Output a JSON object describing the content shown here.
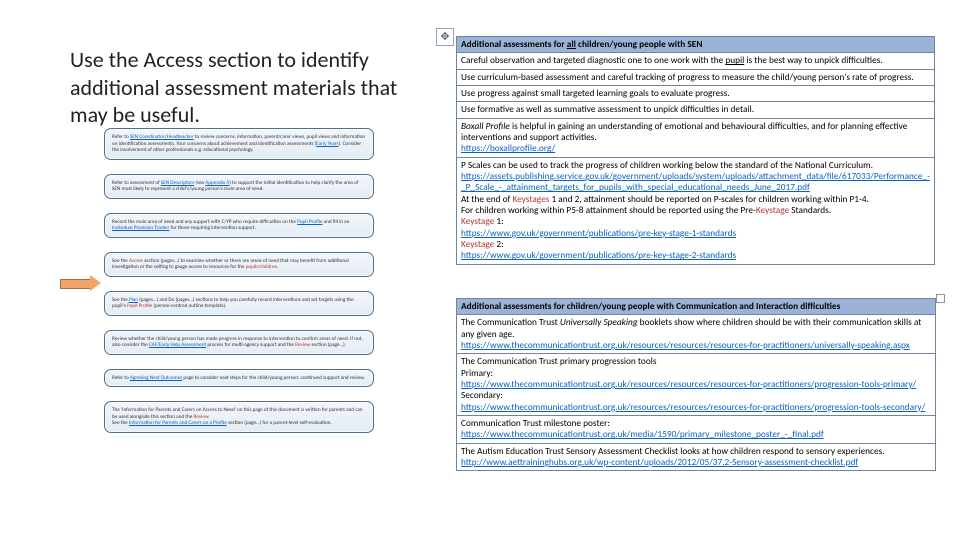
{
  "headline": "Use the Access section to identify additional assessment materials that may be useful.",
  "flow_steps": [
    {
      "text": "Refer to <span class='link'>SEN Coordinator/Headteacher</span> to review concerns, information, parent/carer views, pupil views and information on identification assessments. Your concerns about achievement and identification assessments (<span class='link'>Early Years</span>). Consider the involvement of other professionals e.g. educational psychology."
    },
    {
      "text": "Refer to assessment of <span class='link'>SEN Descriptors</span> (see <span class='link'>Appendix A</span>) to support the initial identification to help clarify the area of SEN most likely to represent a child's/young person's main area of need."
    },
    {
      "text": "Record the main area of need and any support with C/YP who require difficulties on the <span class='link'>Pupil Profile</span> and fill in an <span class='link'>Individual Provision Tracker</span> for those requiring intervention support."
    },
    {
      "text": "See the <span class='red'>Access</span> section (pages…) to examine whether or there are areas of need that may benefit from additional investigation or the setting to gauge access to resources for the <span class='red'>pupils/children</span>."
    },
    {
      "text": "See the <span class='link'>Plan</span> (pages…) and Do (pages…) sections to help you carefully record interventions and set targets using the pupil's <span class='red'>Pupil Profile</span> (person-centred outline template)."
    },
    {
      "text": "Review whether the child/young person has made progress in response to intervention to confirm areas of need. If not, also consider the <span class='link'>CAF/Early Help Assessment</span> process for multi-agency support and the <span class='red'>Review</span> section (page…)."
    },
    {
      "text": "Refer to <span class='link'>Agreeing Next Outcomes</span> page to consider next steps for the child/young person: continued support and review."
    },
    {
      "text": "The 'Information for Parents and Carers on Access to Need' on this page of this document is written for parents and can be used alongside this section and the <span class='red'>Review</span>.<br>See the <span class='link'>Information for Parents and Carers on a Profile</span> section (page…) for a parent-level self-evaluation."
    }
  ],
  "table1": {
    "header": "Additional assessments for <span class='u'>all</span> children/young people with SEN",
    "rows": [
      "Careful observation and targeted diagnostic one to one work with the <span class='u'>pupil</span> is the best way to unpick difficulties.",
      "Use curriculum-based assessment and careful tracking of progress to measure the child/young person's rate of progress.",
      "Use progress against small targeted learning goals to evaluate progress.",
      "Use formative as well as summative assessment to unpick difficulties in detail.",
      "<span class='row-em'>Boxall Profile</span> is helpful in gaining an understanding of emotional and behavioural difficulties, and for planning effective interventions and support activities.<br><span class='lnk'>https://boxallprofile.org/</span>",
      "P Scales can be used to track the progress of children working below the standard of the National Curriculum.<br><span class='lnk'>https://assets.publishing.service.gov.uk/government/uploads/system/uploads/attachment_data/file/617033/Performance_-_P_Scale_-_attainment_targets_for_pupils_with_special_educational_needs_June_2017.pdf</span><br>At the end of <span class='red'>Keystages</span> 1 and 2, attainment should be reported on P-scales for children working within P1-4.<br>For children working within P5-8 attainment should be reported using the Pre-<span class='red'>Keystage</span> Standards.<br><span class='red'>Keystage</span> 1:<br><span class='lnk'>https://www.gov.uk/government/publications/pre-key-stage-1-standards</span><br><span class='red'>Keystage</span> 2:<br><span class='lnk'>https://www.gov.uk/government/publications/pre-key-stage-2-standards</span>"
    ]
  },
  "table2": {
    "header": "Additional assessments for children/young people with Communication and Interaction difficulties",
    "rows": [
      "The Communication Trust <span class='row-em'>Universally Speaking</span> booklets show where children should be with their communication skills at any given age.<br><span class='lnk'>https://www.thecommunicationtrust.org.uk/resources/resources/resources-for-practitioners/universally-speaking.aspx</span>",
      "The Communication Trust primary progression tools<br>Primary:<br><span class='lnk'>https://www.thecommunicationtrust.org.uk/resources/resources/resources-for-practitioners/progression-tools-primary/</span><br>Secondary:<br><span class='lnk'>https://www.thecommunicationtrust.org.uk/resources/resources/resources-for-practitioners/progression-tools-secondary/</span>",
      "Communication Trust milestone poster:<br><span class='lnk'>https://www.thecommunicationtrust.org.uk/media/1590/primary_milestone_poster_-_final.pdf</span>",
      "The Autism Education Trust Sensory Assessment Checklist looks at how children respond to sensory experiences.<br><span class='lnk'>http://www.aettraininghubs.org.uk/wp-content/uploads/2012/05/37.2-Sensory-assessment-checklist.pdf</span>"
    ]
  },
  "colors": {
    "table_header_bg": "#9ab3d6",
    "table_border": "#6f84a0",
    "link": "#0a62c4",
    "red": "#b23a2f",
    "flow_bg_top": "#f2f6fb",
    "flow_bg_bot": "#e4ecf4",
    "flow_border": "#4f6f8f",
    "arrow_fill": "#d9e3ee",
    "callout_fill": "#f0a46a",
    "callout_border": "#b06a34"
  }
}
